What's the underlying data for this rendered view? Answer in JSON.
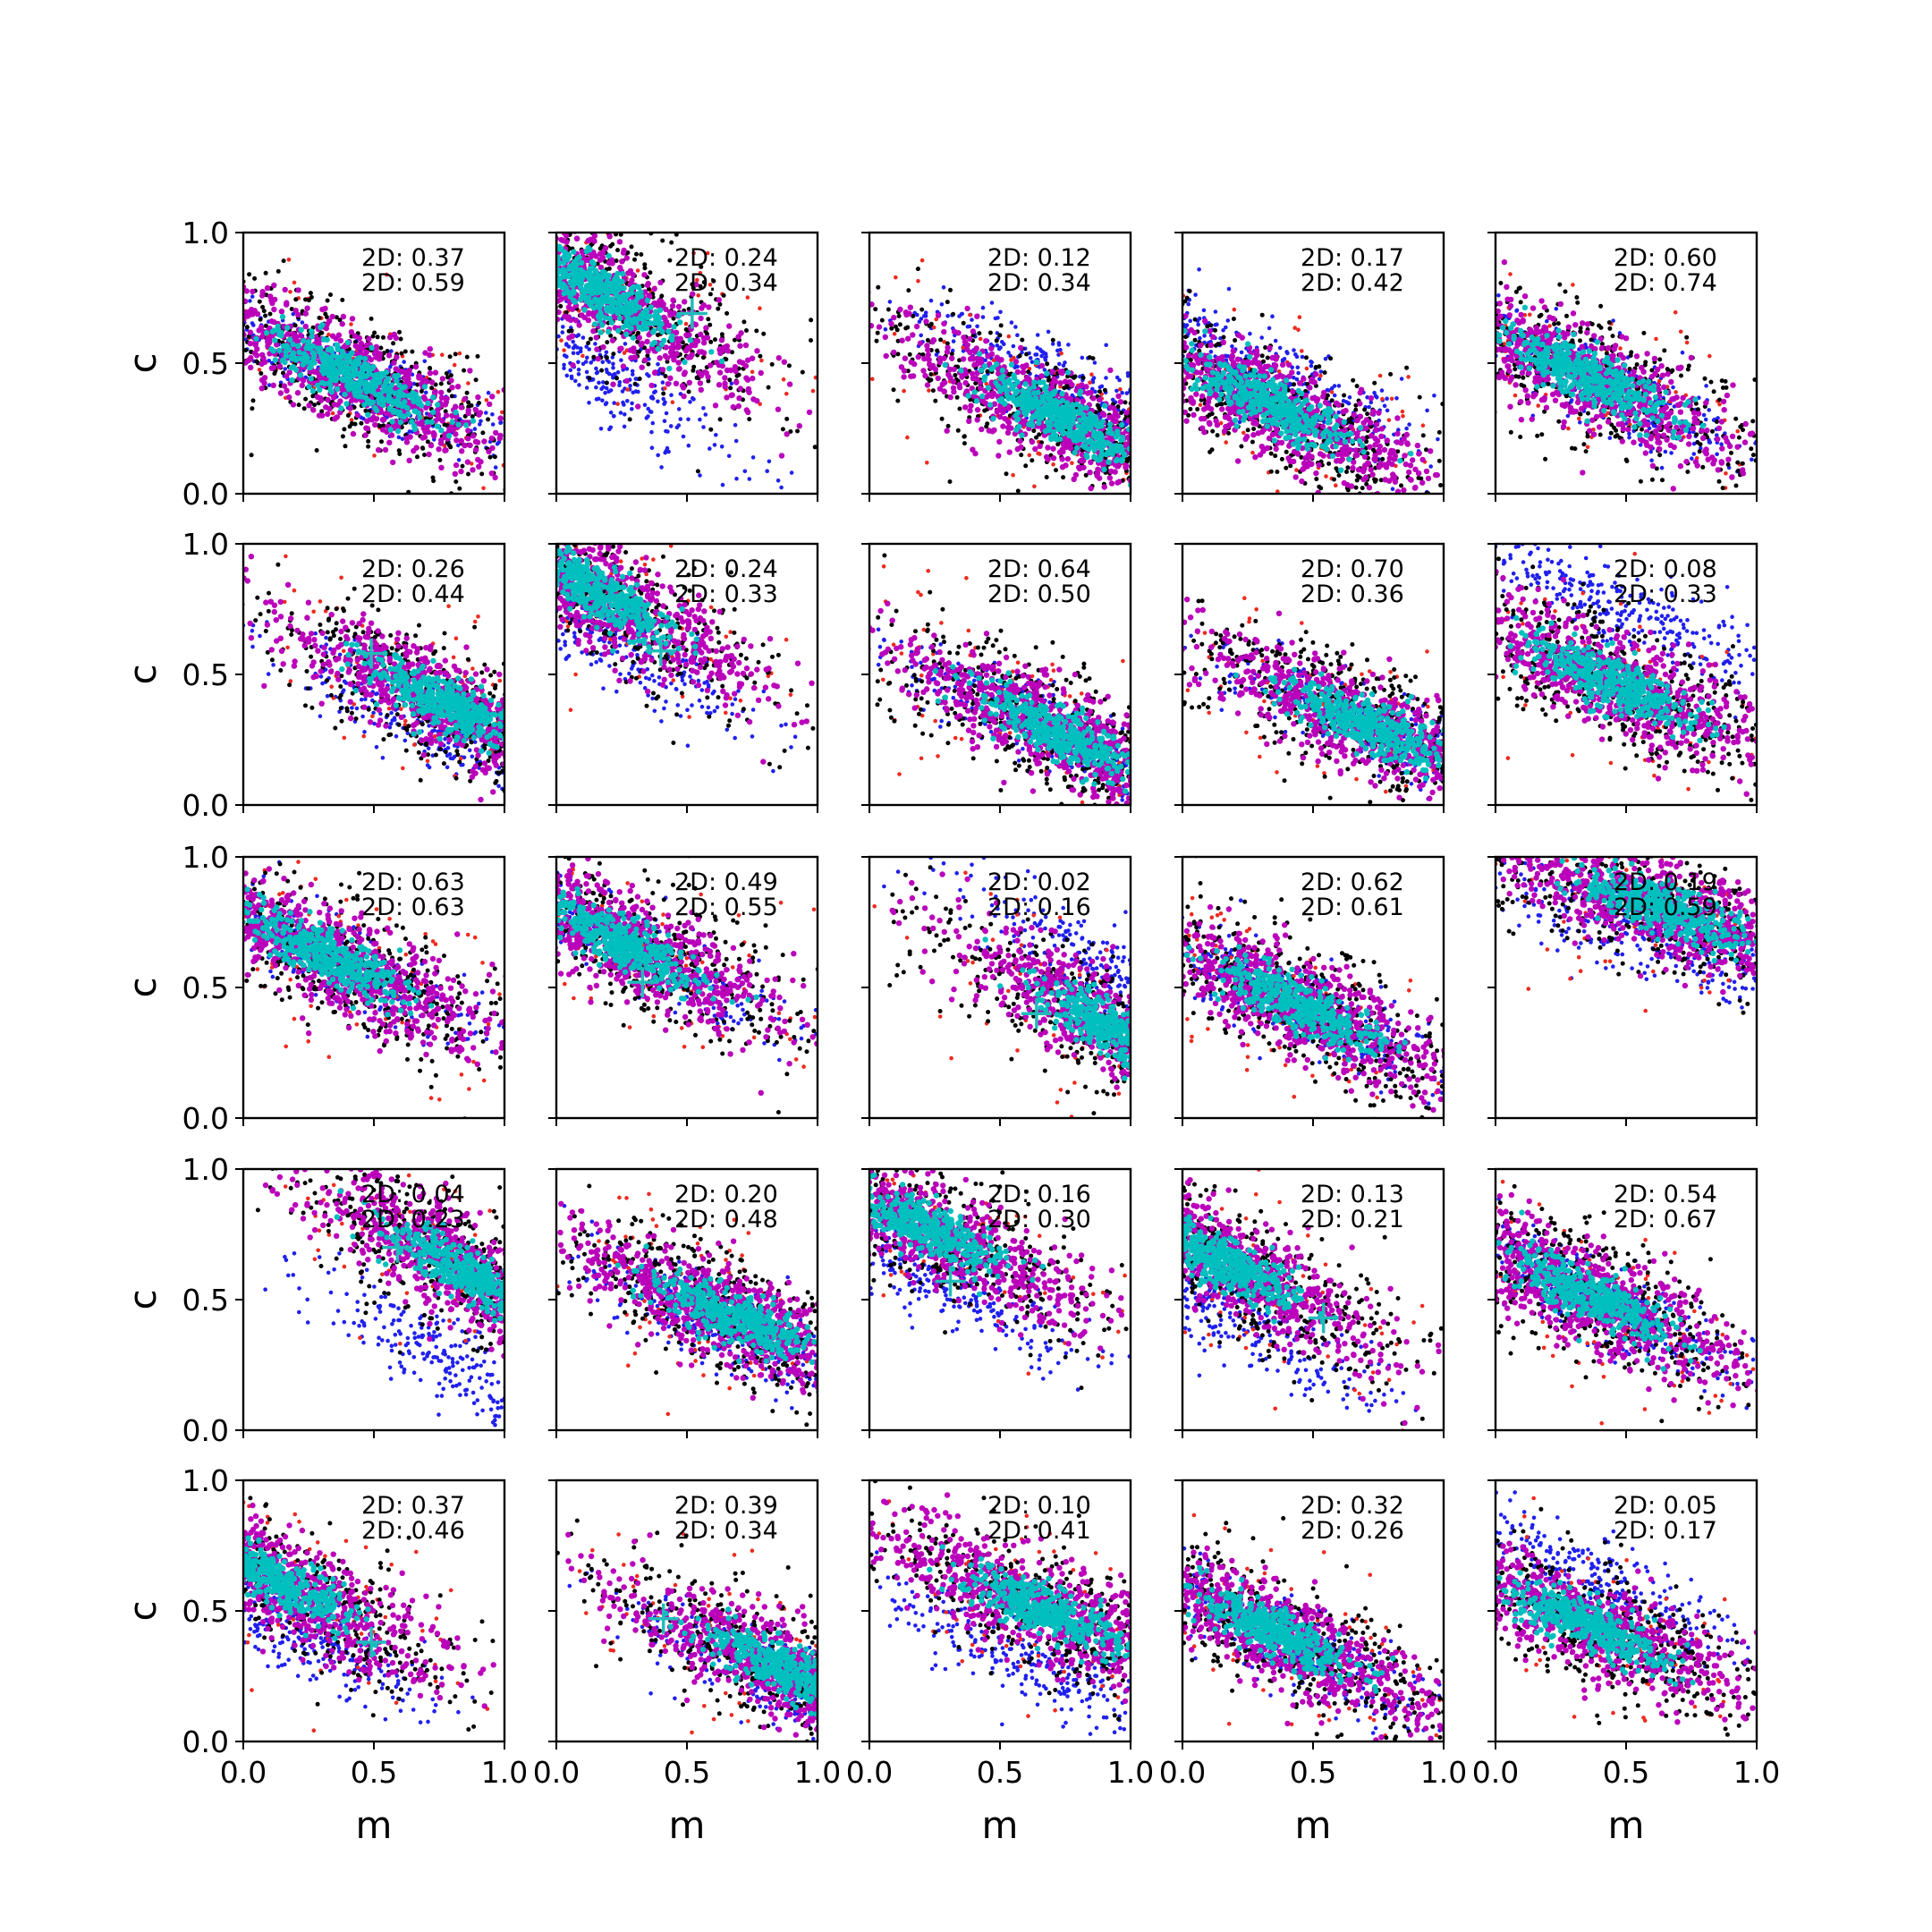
{
  "colors": {
    "series_blue": "#2020ee",
    "series_red": "#ee2a20",
    "series_black": "#000000",
    "series_magenta": "#bb00bb",
    "series_cyan": "#00bfbf",
    "marker": "#22bbbb"
  },
  "axes": {
    "xlabel": "m",
    "ylabel": "c",
    "xlim": [
      0.0,
      1.0
    ],
    "ylim": [
      0.0,
      1.0
    ],
    "xticks": [
      0.0,
      0.5,
      1.0
    ],
    "yticks": [
      0.0,
      0.5,
      1.0
    ],
    "xtick_labels": [
      "0.0",
      "0.5",
      "1.0"
    ],
    "ytick_labels": [
      "0.0",
      "0.5",
      "1.0"
    ]
  },
  "chart_data": {
    "type": "scatter",
    "grid": false,
    "rows": 5,
    "cols": 5,
    "panels": [
      {
        "row": 0,
        "col": 0,
        "labels": [
          "2D: 0.37",
          "2D: 0.59"
        ],
        "cyan_center": [
          0.42,
          0.45
        ],
        "blob_slope": -0.5,
        "blue_offset": 0.0,
        "marker": null
      },
      {
        "row": 0,
        "col": 1,
        "labels": [
          "2D: 0.24",
          "2D: 0.34"
        ],
        "cyan_center": [
          0.15,
          0.78
        ],
        "blob_slope": -0.6,
        "blue_offset": -0.3,
        "marker": [
          0.52,
          0.69
        ]
      },
      {
        "row": 0,
        "col": 2,
        "labels": [
          "2D: 0.12",
          "2D: 0.34"
        ],
        "cyan_center": [
          0.75,
          0.28
        ],
        "blob_slope": -0.5,
        "blue_offset": 0.15,
        "marker": null
      },
      {
        "row": 0,
        "col": 3,
        "labels": [
          "2D: 0.17",
          "2D: 0.42"
        ],
        "cyan_center": [
          0.35,
          0.33
        ],
        "blob_slope": -0.5,
        "blue_offset": 0.12,
        "marker": null
      },
      {
        "row": 0,
        "col": 4,
        "labels": [
          "2D: 0.60",
          "2D: 0.74"
        ],
        "cyan_center": [
          0.35,
          0.45
        ],
        "blob_slope": -0.5,
        "blue_offset": 0.0,
        "marker": null
      },
      {
        "row": 1,
        "col": 0,
        "labels": [
          "2D: 0.26",
          "2D: 0.44"
        ],
        "cyan_center": [
          0.78,
          0.38
        ],
        "blob_slope": -0.5,
        "blue_offset": -0.1,
        "marker": [
          0.49,
          0.58
        ]
      },
      {
        "row": 1,
        "col": 1,
        "labels": [
          "2D: 0.24",
          "2D: 0.33"
        ],
        "cyan_center": [
          0.15,
          0.82
        ],
        "blob_slope": -0.6,
        "blue_offset": -0.15,
        "marker": [
          0.4,
          0.59
        ]
      },
      {
        "row": 1,
        "col": 2,
        "labels": [
          "2D: 0.64",
          "2D: 0.50"
        ],
        "cyan_center": [
          0.72,
          0.28
        ],
        "blob_slope": -0.5,
        "blue_offset": 0.0,
        "marker": null
      },
      {
        "row": 1,
        "col": 3,
        "labels": [
          "2D: 0.70",
          "2D: 0.36"
        ],
        "cyan_center": [
          0.72,
          0.3
        ],
        "blob_slope": -0.45,
        "blue_offset": 0.0,
        "marker": null
      },
      {
        "row": 1,
        "col": 4,
        "labels": [
          "2D: 0.08",
          "2D: 0.33"
        ],
        "cyan_center": [
          0.45,
          0.47
        ],
        "blob_slope": -0.45,
        "blue_offset": 0.3,
        "marker": null
      },
      {
        "row": 2,
        "col": 0,
        "labels": [
          "2D: 0.63",
          "2D: 0.63"
        ],
        "cyan_center": [
          0.32,
          0.62
        ],
        "blob_slope": -0.5,
        "blue_offset": 0.0,
        "marker": null
      },
      {
        "row": 2,
        "col": 1,
        "labels": [
          "2D: 0.49",
          "2D: 0.55"
        ],
        "cyan_center": [
          0.25,
          0.67
        ],
        "blob_slope": -0.5,
        "blue_offset": 0.0,
        "marker": [
          0.33,
          0.52
        ]
      },
      {
        "row": 2,
        "col": 2,
        "labels": [
          "2D: 0.02",
          "2D: 0.16"
        ],
        "cyan_center": [
          0.95,
          0.33
        ],
        "blob_slope": -0.6,
        "blue_offset": 0.2,
        "marker": [
          0.64,
          0.4
        ]
      },
      {
        "row": 2,
        "col": 3,
        "labels": [
          "2D: 0.62",
          "2D: 0.61"
        ],
        "cyan_center": [
          0.45,
          0.43
        ],
        "blob_slope": -0.5,
        "blue_offset": 0.0,
        "marker": null
      },
      {
        "row": 2,
        "col": 4,
        "labels": [
          "2D: 0.19",
          "2D: 0.59"
        ],
        "cyan_center": [
          0.65,
          0.8
        ],
        "blob_slope": -0.35,
        "blue_offset": -0.12,
        "marker": null
      },
      {
        "row": 3,
        "col": 0,
        "labels": [
          "2D: 0.04",
          "2D: 0.23"
        ],
        "cyan_center": [
          0.85,
          0.6
        ],
        "blob_slope": -0.6,
        "blue_offset": -0.38,
        "marker": [
          0.59,
          0.7
        ]
      },
      {
        "row": 3,
        "col": 1,
        "labels": [
          "2D: 0.20",
          "2D: 0.48"
        ],
        "cyan_center": [
          0.68,
          0.43
        ],
        "blob_slope": -0.45,
        "blue_offset": -0.05,
        "marker": null
      },
      {
        "row": 3,
        "col": 2,
        "labels": [
          "2D: 0.16",
          "2D: 0.30"
        ],
        "cyan_center": [
          0.2,
          0.78
        ],
        "blob_slope": -0.5,
        "blue_offset": -0.18,
        "marker": [
          0.31,
          0.57
        ]
      },
      {
        "row": 3,
        "col": 3,
        "labels": [
          "2D: 0.13",
          "2D: 0.21"
        ],
        "cyan_center": [
          0.15,
          0.65
        ],
        "blob_slope": -0.55,
        "blue_offset": -0.2,
        "marker": [
          0.54,
          0.43
        ]
      },
      {
        "row": 3,
        "col": 4,
        "labels": [
          "2D: 0.54",
          "2D: 0.67"
        ],
        "cyan_center": [
          0.35,
          0.52
        ],
        "blob_slope": -0.5,
        "blue_offset": 0.0,
        "marker": null
      },
      {
        "row": 4,
        "col": 0,
        "labels": [
          "2D: 0.37",
          "2D: 0.46"
        ],
        "cyan_center": [
          0.12,
          0.62
        ],
        "blob_slope": -0.55,
        "blue_offset": -0.15,
        "marker": [
          0.49,
          0.38
        ]
      },
      {
        "row": 4,
        "col": 1,
        "labels": [
          "2D: 0.39",
          "2D: 0.34"
        ],
        "cyan_center": [
          0.88,
          0.27
        ],
        "blob_slope": -0.5,
        "blue_offset": -0.05,
        "marker": [
          0.41,
          0.47
        ]
      },
      {
        "row": 4,
        "col": 2,
        "labels": [
          "2D: 0.10",
          "2D: 0.41"
        ],
        "cyan_center": [
          0.68,
          0.5
        ],
        "blob_slope": -0.45,
        "blue_offset": -0.22,
        "marker": null
      },
      {
        "row": 4,
        "col": 3,
        "labels": [
          "2D: 0.32",
          "2D: 0.26"
        ],
        "cyan_center": [
          0.35,
          0.42
        ],
        "blob_slope": -0.5,
        "blue_offset": 0.0,
        "marker": null
      },
      {
        "row": 4,
        "col": 4,
        "labels": [
          "2D: 0.05",
          "2D: 0.17"
        ],
        "cyan_center": [
          0.35,
          0.45
        ],
        "blob_slope": -0.45,
        "blue_offset": 0.18,
        "marker": null
      }
    ]
  }
}
